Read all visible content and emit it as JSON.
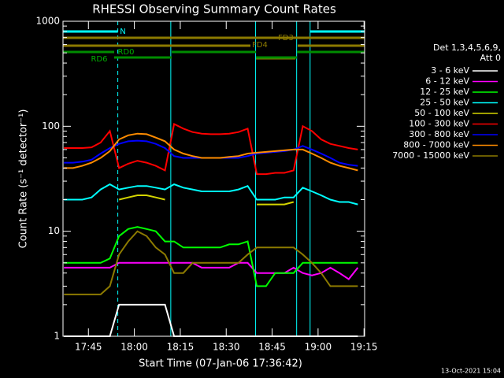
{
  "chart_data": {
    "type": "line",
    "title": "RHESSI Observing Summary Count Rates",
    "xlabel": "Start Time (07-Jan-06 17:36:42)",
    "ylabel": "Count Rate (s⁻¹ detector⁻¹)",
    "footer": "13-Oct-2021 15:04",
    "legend_title": [
      "Det 1,3,4,5,6,9,",
      "Att 0"
    ],
    "annotations": [
      "N",
      "FD3",
      "FD4",
      "RD0",
      "RD6"
    ],
    "log_y": true,
    "legend": "right",
    "xlim": [
      1056.7,
      1155.2
    ],
    "xticks": [
      {
        "value": 1065,
        "label": "17:45"
      },
      {
        "value": 1080,
        "label": "18:00"
      },
      {
        "value": 1095,
        "label": "18:15"
      },
      {
        "value": 1110,
        "label": "18:30"
      },
      {
        "value": 1125,
        "label": "18:45"
      },
      {
        "value": 1140,
        "label": "19:00"
      },
      {
        "value": 1155,
        "label": "19:15"
      }
    ],
    "ylim": [
      1,
      1000
    ],
    "yticks": [
      1,
      10,
      100,
      1000
    ],
    "markers": [
      {
        "x": 1074.6,
        "dashed": true
      },
      {
        "x": 1091.9,
        "dashed": false
      },
      {
        "x": 1119.6,
        "dashed": false
      },
      {
        "x": 1133,
        "dashed": false
      },
      {
        "x": 1137.4,
        "dashed": false
      },
      {
        "x": 1155.2,
        "dashed": true
      }
    ],
    "x": [
      1057,
      1060,
      1063,
      1066,
      1069,
      1072,
      1075,
      1078,
      1081,
      1084,
      1087,
      1090,
      1093,
      1096,
      1099,
      1102,
      1105,
      1108,
      1111,
      1114,
      1117,
      1120,
      1123,
      1126,
      1129,
      1132,
      1135,
      1138,
      1141,
      1144,
      1147,
      1150,
      1153
    ],
    "series": [
      {
        "name": "3 - 6 keV",
        "color": "#ffffff",
        "values": [
          1,
          1,
          1,
          1,
          1,
          1,
          2,
          2,
          2,
          2,
          2,
          2,
          1,
          1,
          1,
          1,
          1,
          1,
          1,
          1,
          1,
          1,
          1,
          1,
          1,
          1,
          1,
          1,
          1,
          1,
          1,
          1,
          1
        ]
      },
      {
        "name": "6 - 12 keV",
        "color": "#ff00ff",
        "values": [
          4.5,
          4.5,
          4.5,
          4.5,
          4.5,
          4.5,
          5,
          5,
          5,
          5,
          5,
          5,
          5,
          5,
          5,
          4.5,
          4.5,
          4.5,
          4.5,
          5,
          5,
          4,
          4,
          4,
          4,
          4.5,
          4,
          3.8,
          4,
          4.5,
          4,
          3.5,
          4.5
        ]
      },
      {
        "name": "12 - 25 keV",
        "color": "#00ff00",
        "values": [
          5,
          5,
          5,
          5,
          5,
          5.5,
          9,
          10.5,
          11,
          10.5,
          10,
          8,
          8,
          7,
          7,
          7,
          7,
          7,
          7.5,
          7.5,
          8,
          3,
          3,
          4,
          4,
          4,
          5,
          5,
          5,
          5,
          5,
          5,
          5
        ]
      },
      {
        "name": "25 - 50 keV",
        "color": "#00ffff",
        "values": [
          20,
          20,
          20,
          21,
          25,
          28,
          25,
          26,
          27,
          27,
          26,
          25,
          28,
          26,
          25,
          24,
          24,
          24,
          24,
          25,
          27,
          20,
          20,
          20,
          21,
          21,
          26,
          24,
          22,
          20,
          19,
          19,
          18
        ]
      },
      {
        "name": "50 - 100 keV",
        "color": "#d4d400",
        "values": [
          null,
          null,
          null,
          null,
          null,
          null,
          20,
          21,
          22,
          22,
          21,
          20,
          null,
          null,
          null,
          null,
          null,
          null,
          null,
          null,
          null,
          18,
          18,
          18,
          18,
          19,
          null,
          null,
          null,
          null,
          null,
          null,
          null
        ]
      },
      {
        "name": "100 - 300 keV",
        "color": "#ff0000",
        "values": [
          62,
          62,
          62,
          63,
          70,
          90,
          40,
          44,
          47,
          45,
          42,
          38,
          105,
          95,
          88,
          85,
          84,
          84,
          85,
          88,
          95,
          35,
          35,
          36,
          36,
          38,
          100,
          90,
          75,
          68,
          65,
          62,
          60
        ]
      },
      {
        "name": "300 - 800 keV",
        "color": "#0000ff",
        "values": [
          45,
          45,
          46,
          48,
          55,
          62,
          68,
          72,
          73,
          72,
          68,
          62,
          52,
          50,
          50,
          50,
          50,
          50,
          50,
          50,
          52,
          55,
          56,
          57,
          58,
          60,
          65,
          60,
          55,
          50,
          45,
          43,
          42
        ]
      },
      {
        "name": "800 - 7000 keV",
        "color": "#ff8c00",
        "values": [
          40,
          40,
          42,
          45,
          50,
          58,
          75,
          82,
          85,
          84,
          78,
          72,
          60,
          55,
          52,
          50,
          50,
          50,
          51,
          52,
          55,
          56,
          57,
          58,
          59,
          60,
          60,
          55,
          50,
          45,
          42,
          40,
          38
        ]
      },
      {
        "name": "7000 - 15000 keV",
        "color": "#8c7a00",
        "values": [
          2.5,
          2.5,
          2.5,
          2.5,
          2.5,
          3,
          6,
          8,
          10,
          9,
          7,
          6,
          4,
          4,
          5,
          5,
          5,
          5,
          5,
          5,
          6,
          7,
          7,
          7,
          7,
          7,
          6,
          5,
          4,
          3,
          3,
          3,
          3
        ]
      }
    ]
  }
}
